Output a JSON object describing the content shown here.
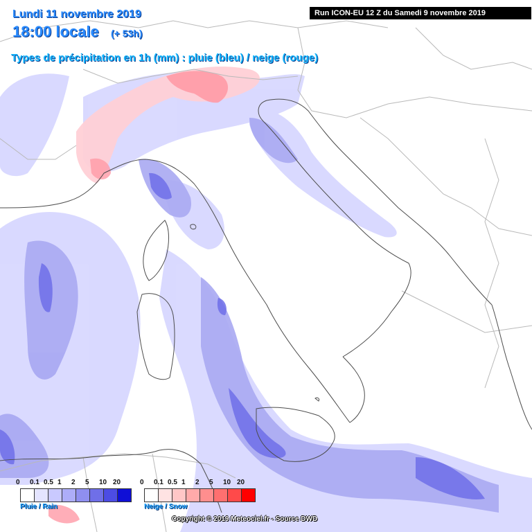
{
  "header": {
    "date": "Lundi 11 novembre 2019",
    "time": "18:00 locale",
    "lead": "(+ 53h)",
    "subtitle": "Types de précipitation en 1h (mm) : pluie (bleu) / neige (rouge)",
    "run": "Run ICON-EU 12 Z du Samedi 9 novembre 2019"
  },
  "legend_rain": {
    "caption": "Pluie / Rain",
    "ticks": [
      "0",
      "0.1",
      "0.5",
      "1",
      "2",
      "5",
      "10",
      "20"
    ],
    "colors": [
      "#ffffff",
      "#e4e4ff",
      "#c9c9ff",
      "#adadf8",
      "#8f8ff0",
      "#6f6fe8",
      "#4c4ce4",
      "#0f0fd6"
    ]
  },
  "legend_snow": {
    "caption": "Neige / Snow",
    "ticks": [
      "0",
      "0.1",
      "0.5",
      "1",
      "2",
      "5",
      "10",
      "20"
    ],
    "colors": [
      "#ffffff",
      "#ffe3e3",
      "#ffc7c7",
      "#ffaaaa",
      "#ff8e8e",
      "#ff6f6f",
      "#ff4a4a",
      "#ff0000"
    ]
  },
  "copyright": "Copyright © 2019 Meteociel.fr - Source DWD",
  "colors": {
    "background": "#ffffff",
    "rain_light": "#d6d6ff",
    "rain_mid": "#a4a4f2",
    "rain_heavy": "#6a6ae6",
    "snow_light": "#ffd0d6",
    "snow_mid": "#ff9aa6",
    "border": "#b9b9b9",
    "coast": "#555555"
  }
}
